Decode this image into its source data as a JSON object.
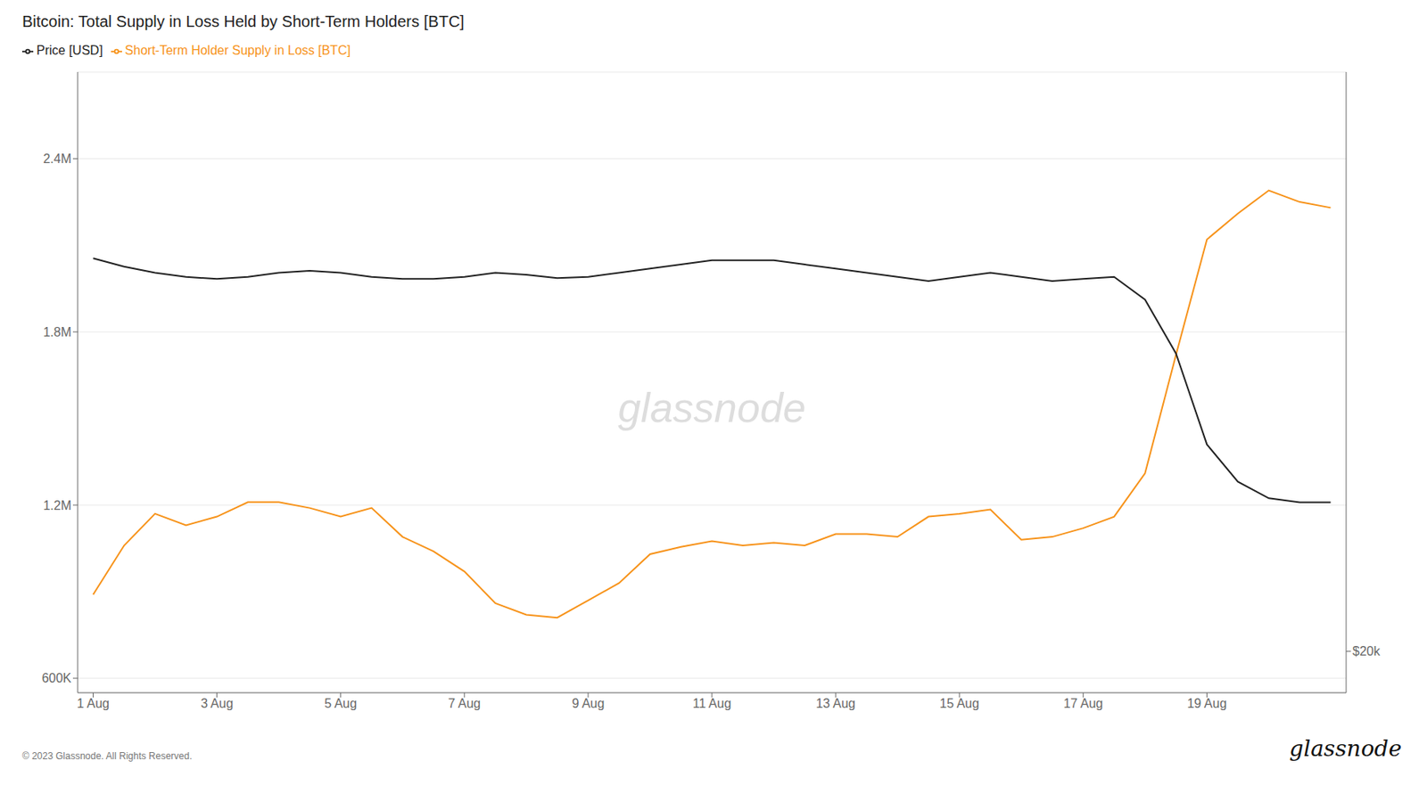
{
  "chart_data": {
    "type": "line",
    "title": "Bitcoin: Total Supply in Loss Held by Short-Term Holders [BTC]",
    "x": [
      0,
      1,
      2,
      3,
      4,
      5,
      6,
      7,
      8,
      9,
      10,
      11,
      12,
      13,
      14,
      15,
      16,
      17,
      18,
      19,
      20,
      21,
      22,
      23,
      24,
      25,
      26,
      27,
      28,
      29,
      30,
      31,
      32,
      33,
      34,
      35,
      36,
      37,
      38,
      39,
      40
    ],
    "xlim": [
      -0.5,
      40.5
    ],
    "xticks": [
      {
        "value": 0,
        "label": "1 Aug"
      },
      {
        "value": 4,
        "label": "3 Aug"
      },
      {
        "value": 8,
        "label": "5 Aug"
      },
      {
        "value": 12,
        "label": "7 Aug"
      },
      {
        "value": 16,
        "label": "9 Aug"
      },
      {
        "value": 20,
        "label": "11 Aug"
      },
      {
        "value": 24,
        "label": "13 Aug"
      },
      {
        "value": 28,
        "label": "15 Aug"
      },
      {
        "value": 32,
        "label": "17 Aug"
      },
      {
        "value": 36,
        "label": "19 Aug"
      }
    ],
    "ylim": [
      550000,
      2700000
    ],
    "yticks": [
      {
        "value": 600000,
        "label": "600K"
      },
      {
        "value": 1200000,
        "label": "1.2M"
      },
      {
        "value": 1800000,
        "label": "1.8M"
      },
      {
        "value": 2400000,
        "label": "2.4M"
      }
    ],
    "y2lim": [
      19000,
      34000
    ],
    "y2ticks": [
      {
        "value": 20000,
        "label": "$20k"
      }
    ],
    "grid": true,
    "legend": "upper left",
    "series": [
      {
        "name": "Short-Term Holder Supply in Loss [BTC]",
        "color": "#F7931A",
        "values": [
          890000,
          1060000,
          1170000,
          1130000,
          1160000,
          1210000,
          1210000,
          1190000,
          1160000,
          1190000,
          1090000,
          1040000,
          970000,
          860000,
          820000,
          810000,
          870000,
          930000,
          1030000,
          1055000,
          1075000,
          1060000,
          1070000,
          1060000,
          1100000,
          1100000,
          1090000,
          1160000,
          1170000,
          1185000,
          1080000,
          1090000,
          1120000,
          1160000,
          1310000,
          1720000,
          2120000,
          2210000,
          2290000,
          2250000,
          2230000
        ]
      },
      {
        "name": "Price [USD]",
        "color": "#222222",
        "axis": "y2",
        "values": [
          29500,
          29300,
          29150,
          29050,
          29000,
          29050,
          29150,
          29200,
          29150,
          29050,
          29000,
          29000,
          29050,
          29150,
          29100,
          29020,
          29050,
          29150,
          29250,
          29350,
          29450,
          29450,
          29450,
          29350,
          29250,
          29150,
          29050,
          28950,
          29050,
          29150,
          29050,
          28950,
          29000,
          29050,
          28500,
          27200,
          25000,
          24100,
          23700,
          23600,
          23600
        ]
      }
    ],
    "annotations": [
      "glassnode",
      "© 2023 Glassnode. All Rights Reserved.",
      "glassnode"
    ]
  }
}
